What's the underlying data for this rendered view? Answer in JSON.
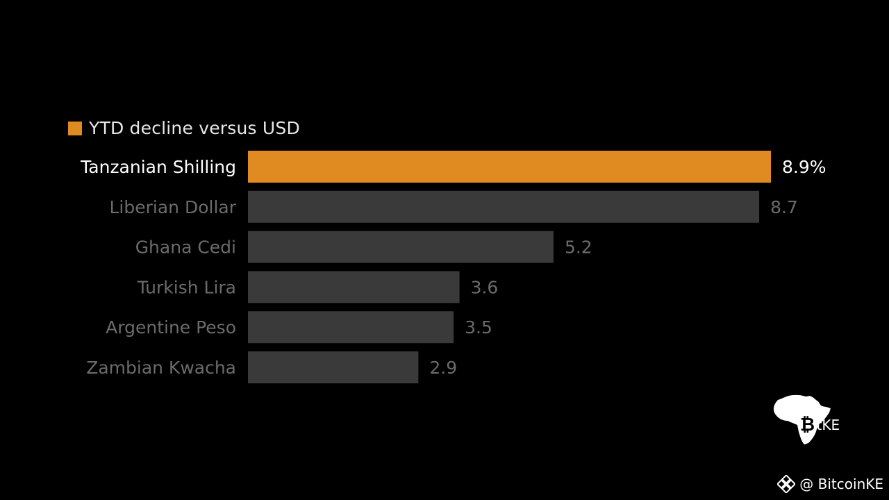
{
  "chart_data": {
    "type": "bar",
    "orientation": "horizontal",
    "legend": {
      "label": "YTD decline versus USD",
      "color": "#e08a22",
      "placement": "top-left"
    },
    "categories": [
      "Tanzanian Shilling",
      "Liberian Dollar",
      "Ghana Cedi",
      "Turkish Lira",
      "Argentine Peso",
      "Zambian Kwacha"
    ],
    "values": [
      8.9,
      8.7,
      5.2,
      3.6,
      3.5,
      2.9
    ],
    "value_labels": [
      "8.9%",
      "8.7",
      "5.2",
      "3.6",
      "3.5",
      "2.9"
    ],
    "highlight_index": 0,
    "highlight_color": "#e08a22",
    "bar_color": "#3a3a3a",
    "highlight_text_color": "#ffffff",
    "muted_text_color": "#6b6b6b",
    "xlim": [
      0,
      8.9
    ],
    "grid": false
  },
  "watermark": {
    "brand_text": "itKE",
    "handle": "@ BitcoinKE",
    "logo_icon": "africa-bitcoin-icon",
    "handle_icon": "binance-diamond-icon"
  }
}
